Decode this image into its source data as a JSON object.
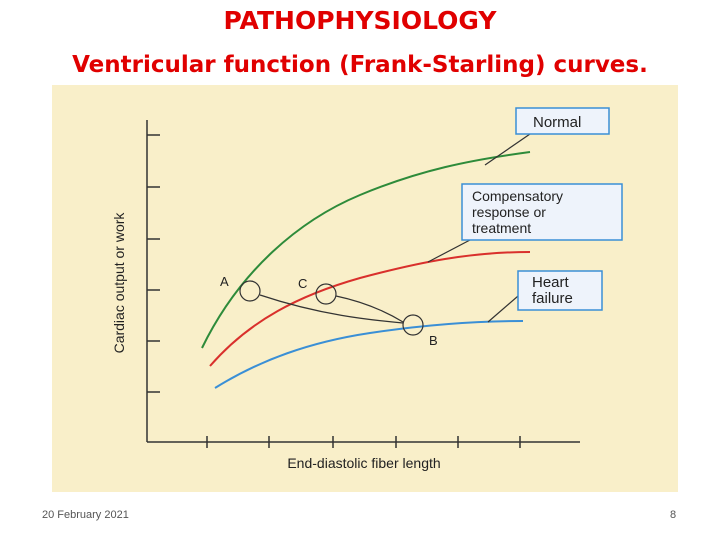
{
  "header": {
    "title": "PATHOPHYSIOLOGY",
    "subtitle": "Ventricular function (Frank-Starling) curves."
  },
  "labels": {
    "normal": "Normal",
    "compensatory": [
      "Compensatory",
      "response or",
      "treatment"
    ],
    "heart_failure": [
      "Heart",
      "failure"
    ],
    "points": [
      "A",
      "C",
      "B"
    ],
    "y_axis": "Cardiac output or work",
    "x_axis": "End-diastolic fiber length"
  },
  "footer": {
    "date": "20 February 2021",
    "page": "8"
  }
}
